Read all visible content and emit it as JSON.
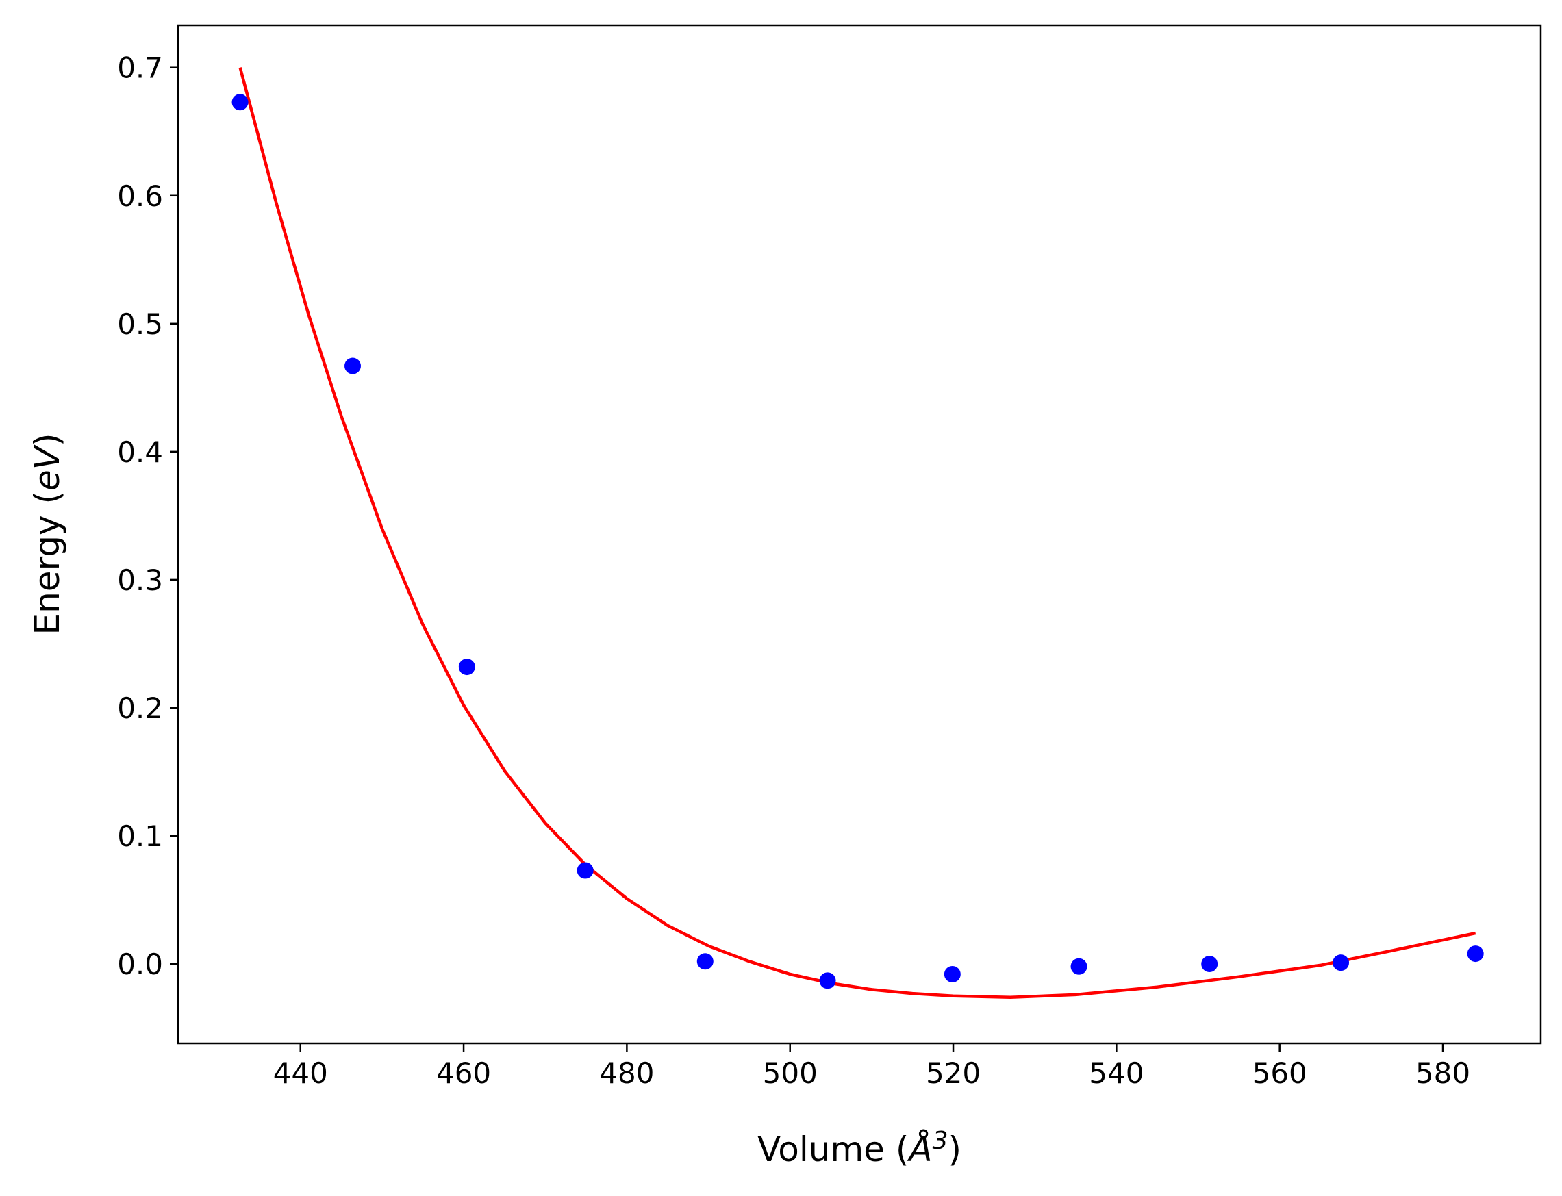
{
  "chart_data": {
    "type": "scatter",
    "xlabel": {
      "prefix": "Volume (",
      "symbol": "Å",
      "exponent": "3",
      "suffix": ")"
    },
    "ylabel": {
      "prefix": "Energy (",
      "unit": "eV",
      "suffix": ")"
    },
    "xlim": [
      425,
      592
    ],
    "ylim": [
      -0.062,
      0.733
    ],
    "x_ticks": [
      440,
      460,
      480,
      500,
      520,
      540,
      560,
      580
    ],
    "x_tick_labels": [
      "440",
      "460",
      "480",
      "500",
      "520",
      "540",
      "560",
      "580"
    ],
    "y_ticks": [
      0.0,
      0.1,
      0.2,
      0.3,
      0.4,
      0.5,
      0.6,
      0.7
    ],
    "y_tick_labels": [
      "0.0",
      "0.1",
      "0.2",
      "0.3",
      "0.4",
      "0.5",
      "0.6",
      "0.7"
    ],
    "grid": false,
    "series": [
      {
        "kind": "scatter",
        "color": "#0000ff",
        "x": [
          432.6,
          446.4,
          460.4,
          474.9,
          489.6,
          504.6,
          519.9,
          535.4,
          551.4,
          567.5,
          584.0
        ],
        "y": [
          0.673,
          0.467,
          0.232,
          0.073,
          0.002,
          -0.013,
          -0.008,
          -0.002,
          0.0,
          0.001,
          0.008
        ]
      },
      {
        "kind": "line",
        "color": "#ff0000",
        "x": [
          432.6,
          437.0,
          441.0,
          445.0,
          450.0,
          455.0,
          460.0,
          465.0,
          470.0,
          475.0,
          480.0,
          485.0,
          490.0,
          495.0,
          500.0,
          505.0,
          510.0,
          515.0,
          520.0,
          527.0,
          535.0,
          545.0,
          555.0,
          565.0,
          575.0,
          584.0
        ],
        "y": [
          0.7,
          0.595,
          0.507,
          0.428,
          0.34,
          0.265,
          0.202,
          0.151,
          0.11,
          0.077,
          0.051,
          0.03,
          0.014,
          0.002,
          -0.008,
          -0.015,
          -0.02,
          -0.023,
          -0.025,
          -0.026,
          -0.024,
          -0.018,
          -0.01,
          -0.001,
          0.012,
          0.024
        ]
      }
    ]
  }
}
